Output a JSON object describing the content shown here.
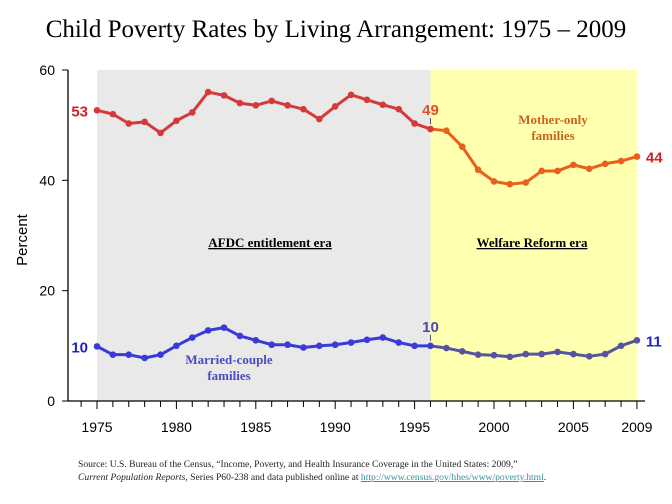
{
  "chart_data": {
    "type": "line",
    "title": "Child Poverty Rates by Living Arrangement: 1975 – 2009",
    "ylabel": "Percent",
    "xlabel": "",
    "ylim": [
      0,
      60
    ],
    "yticks": [
      "0",
      "20",
      "40",
      "60"
    ],
    "xticks": [
      "1975",
      "1980",
      "1985",
      "1990",
      "1995",
      "2000",
      "2005",
      "2009"
    ],
    "x": [
      1975,
      1976,
      1977,
      1978,
      1979,
      1980,
      1981,
      1982,
      1983,
      1984,
      1985,
      1986,
      1987,
      1988,
      1989,
      1990,
      1991,
      1992,
      1993,
      1994,
      1995,
      1996,
      1997,
      1998,
      1999,
      2000,
      2001,
      2002,
      2003,
      2004,
      2005,
      2006,
      2007,
      2008,
      2009
    ],
    "series": [
      {
        "name": "Mother-only families",
        "color": "#d43a3a",
        "color_after_1996": "#e8601c",
        "values": [
          52.7,
          52.0,
          50.3,
          50.6,
          48.6,
          50.8,
          52.3,
          56.0,
          55.4,
          54.0,
          53.6,
          54.4,
          53.6,
          52.9,
          51.1,
          53.4,
          55.5,
          54.6,
          53.7,
          52.9,
          50.3,
          49.3,
          49.0,
          46.1,
          41.9,
          39.8,
          39.3,
          39.6,
          41.7,
          41.7,
          42.8,
          42.1,
          43.0,
          43.5,
          44.3
        ]
      },
      {
        "name": "Married-couple families",
        "color": "#3a3ad8",
        "color_after_1996": "#55559f",
        "values": [
          9.9,
          8.4,
          8.4,
          7.8,
          8.4,
          10.0,
          11.5,
          12.8,
          13.3,
          11.8,
          11.0,
          10.2,
          10.2,
          9.7,
          10.0,
          10.2,
          10.6,
          11.1,
          11.5,
          10.6,
          10.0,
          10.0,
          9.6,
          9.0,
          8.4,
          8.3,
          8.0,
          8.5,
          8.5,
          8.9,
          8.5,
          8.1,
          8.5,
          10.0,
          11.0
        ]
      }
    ],
    "data_labels": [
      {
        "text": "53",
        "x": 1975,
        "series": 0,
        "color": "#d42020"
      },
      {
        "text": "49",
        "x": 1996,
        "series": 0,
        "color": "#d8552a"
      },
      {
        "text": "44",
        "x": 2009,
        "series": 0,
        "color": "#d42020"
      },
      {
        "text": "10",
        "x": 1975,
        "series": 1,
        "color": "#2222c8"
      },
      {
        "text": "10",
        "x": 1996,
        "series": 1,
        "color": "#4a4aa8"
      },
      {
        "text": "11",
        "x": 2009,
        "series": 1,
        "color": "#2222c8"
      }
    ],
    "regions": [
      {
        "label": "AFDC entitlement era",
        "from": 1975,
        "to": 1996,
        "color": "#e9e9e9"
      },
      {
        "label": "Welfare Reform era",
        "from": 1996,
        "to": 2009,
        "color": "#ffffb0"
      }
    ],
    "grid": false,
    "legend": "none (inline series labels)"
  },
  "source": {
    "prefix": "Source:  U.S. Bureau of the Census,  “Income, Poverty, and Health Insurance Coverage in the United States: 2009,”",
    "report": "Current Population Reports,",
    "series_text": " Series P60-238 and data published online at ",
    "link": "http://www.census.gov/hhes/www/poverty.html",
    "end": "."
  }
}
